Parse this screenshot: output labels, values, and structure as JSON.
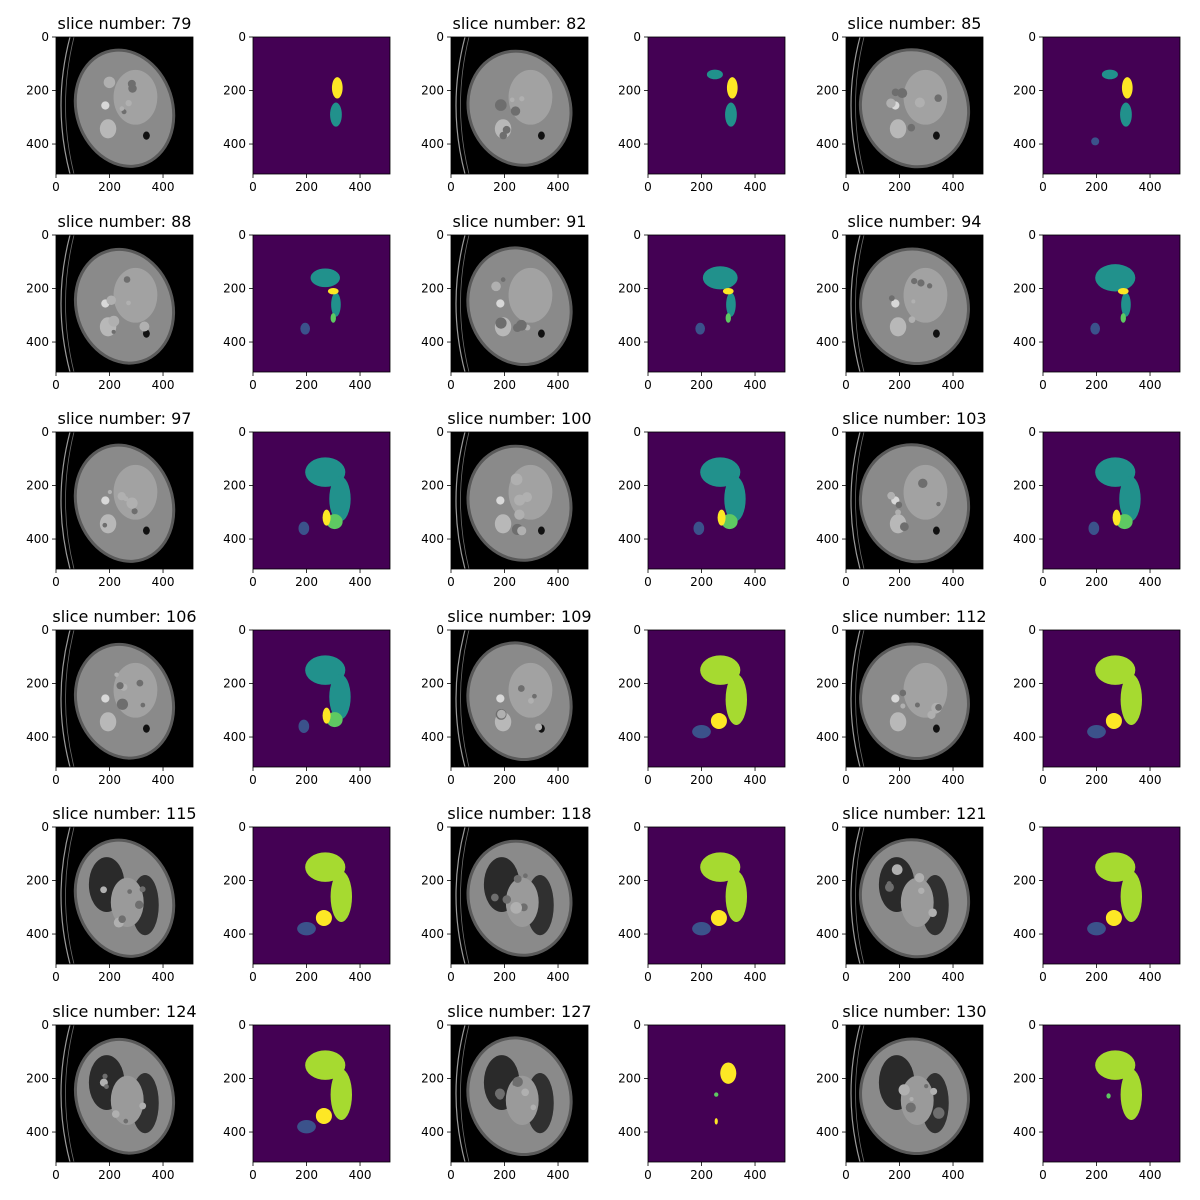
{
  "figure": {
    "layout": {
      "rows": 6,
      "cols": 6,
      "pair": [
        "ct-image",
        "segmentation-mask"
      ]
    },
    "title_prefix": "slice number: ",
    "axes": {
      "x_ticks": [
        "0",
        "200",
        "400"
      ],
      "y_ticks": [
        "0",
        "200",
        "400"
      ],
      "extent": [
        0,
        512
      ]
    },
    "colors": {
      "mask_background": "#440154",
      "label_1": "#3b528b",
      "label_2": "#21918c",
      "label_3": "#5ec962",
      "label_4": "#a6da30",
      "label_5": "#fde725",
      "ct_background": "#000000",
      "ct_body": "#8a8a8a"
    },
    "slices": [
      {
        "number": "79"
      },
      {
        "number": "82"
      },
      {
        "number": "85"
      },
      {
        "number": "88"
      },
      {
        "number": "91"
      },
      {
        "number": "94"
      },
      {
        "number": "97"
      },
      {
        "number": "100"
      },
      {
        "number": "103"
      },
      {
        "number": "106"
      },
      {
        "number": "109"
      },
      {
        "number": "112"
      },
      {
        "number": "115"
      },
      {
        "number": "118"
      },
      {
        "number": "121"
      },
      {
        "number": "124"
      },
      {
        "number": "127"
      },
      {
        "number": "130"
      }
    ]
  }
}
